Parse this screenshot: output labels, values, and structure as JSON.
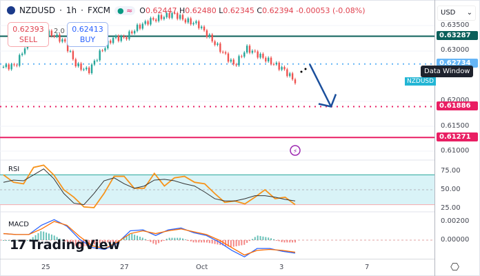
{
  "header": {
    "symbol": "NZDUSD",
    "interval": "1h",
    "exchange": "FXCM",
    "sep": "·",
    "ohlc": {
      "o_label": "O",
      "o": "0.62447",
      "h_label": "H",
      "h": "0.62480",
      "l_label": "L",
      "l": "0.62345",
      "c_label": "C",
      "c": "0.62394",
      "change": "-0.00053",
      "change_pct": "(-0.08%)"
    }
  },
  "trade": {
    "sell_price": "0.62393",
    "sell_label": "SELL",
    "buy_price": "0.62413",
    "buy_label": "BUY",
    "spread": "2.0"
  },
  "axis": {
    "currency": "USD",
    "ticks": [
      "0.63500",
      "0.63000",
      "0.62000",
      "0.61500",
      "0.61000"
    ],
    "labels": [
      {
        "value": "0.63287",
        "color": "#0b5f5a"
      },
      {
        "value": "0.62734",
        "color": "#64b5f6"
      },
      {
        "value": "0.61886",
        "color": "#e91e63"
      },
      {
        "value": "0.61271",
        "color": "#e91e63"
      }
    ]
  },
  "tooltip": "Data Window",
  "symbol_tag": "NZDUSD",
  "rsi": {
    "label": "RSI",
    "ticks": [
      "75.00",
      "50.00",
      "25.00"
    ]
  },
  "macd": {
    "label": "MACD",
    "ticks": [
      "0.00200",
      "0.00000"
    ]
  },
  "dates": [
    "25",
    "27",
    "Oct",
    "3",
    "7"
  ],
  "brand": "TradingView",
  "colors": {
    "up": "#26a69a",
    "down": "#ef5350",
    "rsi": "#f7931a",
    "macd": "#2962ff",
    "signal": "#ff6d00",
    "arrow": "#1b4f9c"
  },
  "chart_data": {
    "type": "candlestick",
    "y_range": [
      0.61,
      0.635
    ],
    "close_path": [
      0.62676,
      0.62703,
      0.63184,
      0.6339,
      0.63321,
      0.63184,
      0.62703,
      0.62593,
      0.62978,
      0.63253,
      0.63253,
      0.63459,
      0.63596,
      0.63665,
      0.63734,
      0.63596,
      0.63527,
      0.63253,
      0.62978,
      0.62703,
      0.63047,
      0.6291,
      0.62772,
      0.62635,
      0.62387
    ],
    "horizontal_levels": [
      0.63287,
      0.62734,
      0.61886,
      0.61271
    ],
    "projection": {
      "from": 0.62734,
      "to": 0.61886
    },
    "rsi": [
      70,
      60,
      58,
      80,
      83,
      70,
      50,
      40,
      27,
      26,
      45,
      68,
      68,
      52,
      52,
      72,
      55,
      66,
      68,
      60,
      58,
      45,
      33,
      35,
      31,
      40,
      50,
      38,
      40,
      30
    ],
    "rsi_ma": [
      60,
      63,
      62,
      70,
      78,
      65,
      45,
      32,
      30,
      45,
      62,
      66,
      58,
      52,
      55,
      63,
      64,
      62,
      58,
      55,
      47,
      38,
      35,
      35,
      38,
      42,
      42,
      40,
      37,
      35
    ],
    "macd": [
      0.0007,
      0.0006,
      0.0006,
      0.0016,
      0.0022,
      0.0015,
      0.0001,
      -0.0008,
      -0.001,
      -0.0003,
      0.001,
      0.0011,
      0.0005,
      0.0011,
      0.0013,
      0.0008,
      0.0005,
      -0.0002,
      -0.0011,
      -0.0018,
      -0.0009,
      -0.0009,
      -0.0012,
      -0.0014
    ],
    "signal": [
      0.0007,
      0.0006,
      0.0006,
      0.0012,
      0.002,
      0.0016,
      0.0004,
      -0.0006,
      -0.0009,
      -0.0002,
      0.0007,
      0.001,
      0.0007,
      0.001,
      0.0012,
      0.0009,
      0.0006,
      0.0,
      -0.0008,
      -0.0016,
      -0.0011,
      -0.001,
      -0.0011,
      -0.0013
    ]
  }
}
